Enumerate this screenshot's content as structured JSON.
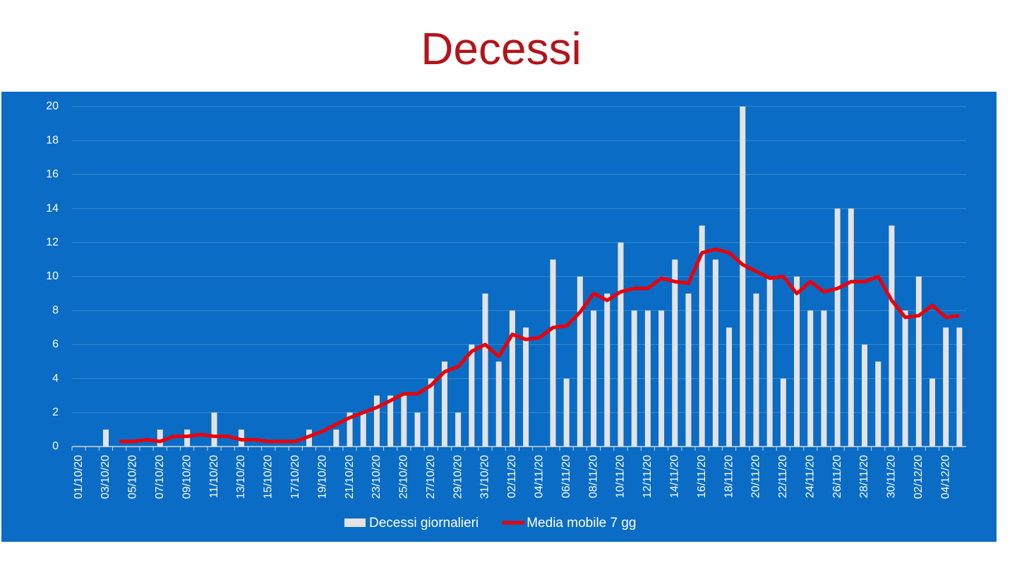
{
  "chart_data": {
    "type": "bar_line",
    "title": "Decessi",
    "categories": [
      "01/10/20",
      null,
      "03/10/20",
      null,
      "05/10/20",
      null,
      "07/10/20",
      null,
      "09/10/20",
      null,
      "11/10/20",
      null,
      "13/10/20",
      null,
      "15/10/20",
      null,
      "17/10/20",
      null,
      "19/10/20",
      null,
      "21/10/20",
      null,
      "23/10/20",
      null,
      "25/10/20",
      null,
      "27/10/20",
      null,
      "29/10/20",
      null,
      "31/10/20",
      null,
      "02/11/20",
      null,
      "04/11/20",
      null,
      "06/11/20",
      null,
      "08/11/20",
      null,
      "10/11/20",
      null,
      "12/11/20",
      null,
      "14/11/20",
      null,
      "16/11/20",
      null,
      "18/11/20",
      null,
      "20/11/20",
      null,
      "22/11/20",
      null,
      "24/11/20",
      null,
      "26/11/20",
      null,
      "28/11/20",
      null,
      "30/11/20",
      null,
      "02/12/20",
      null,
      "04/12/20",
      null
    ],
    "series": [
      {
        "name": "Decessi giornalieri",
        "type": "bar",
        "color": "#e3e3e3",
        "values": [
          0,
          0,
          1,
          0,
          0,
          0,
          1,
          0,
          1,
          0,
          2,
          0,
          1,
          0,
          0,
          0,
          0,
          1,
          0,
          1,
          2,
          2,
          3,
          3,
          3,
          2,
          4,
          5,
          2,
          6,
          9,
          5,
          8,
          7,
          0,
          11,
          4,
          10,
          8,
          9,
          12,
          8,
          8,
          8,
          11,
          9,
          13,
          11,
          7,
          20,
          9,
          10,
          4,
          10,
          8,
          8,
          14,
          14,
          6,
          5,
          13,
          8,
          10,
          4,
          7,
          7
        ]
      },
      {
        "name": "Media mobile 7 gg",
        "type": "line",
        "color": "#e8000b",
        "values": [
          null,
          null,
          null,
          0.3,
          0.3,
          0.4,
          0.3,
          0.6,
          0.6,
          0.7,
          0.6,
          0.6,
          0.4,
          0.4,
          0.3,
          0.3,
          0.3,
          0.6,
          0.9,
          1.3,
          1.7,
          2.0,
          2.3,
          2.7,
          3.1,
          3.1,
          3.6,
          4.4,
          4.7,
          5.6,
          6.0,
          5.3,
          6.6,
          6.3,
          6.4,
          7.0,
          7.1,
          7.9,
          9.0,
          8.6,
          9.1,
          9.3,
          9.3,
          9.9,
          9.7,
          9.6,
          11.4,
          11.6,
          11.4,
          10.7,
          10.3,
          9.9,
          10.0,
          9.0,
          9.7,
          9.1,
          9.3,
          9.7,
          9.7,
          10.0,
          8.6,
          7.6,
          7.7,
          8.3,
          7.6,
          7.7
        ]
      }
    ],
    "ylim": [
      0,
      20
    ],
    "yticks": [
      0,
      2,
      4,
      6,
      8,
      10,
      12,
      14,
      16,
      18,
      20
    ],
    "grid": true,
    "legend": "bottom"
  }
}
